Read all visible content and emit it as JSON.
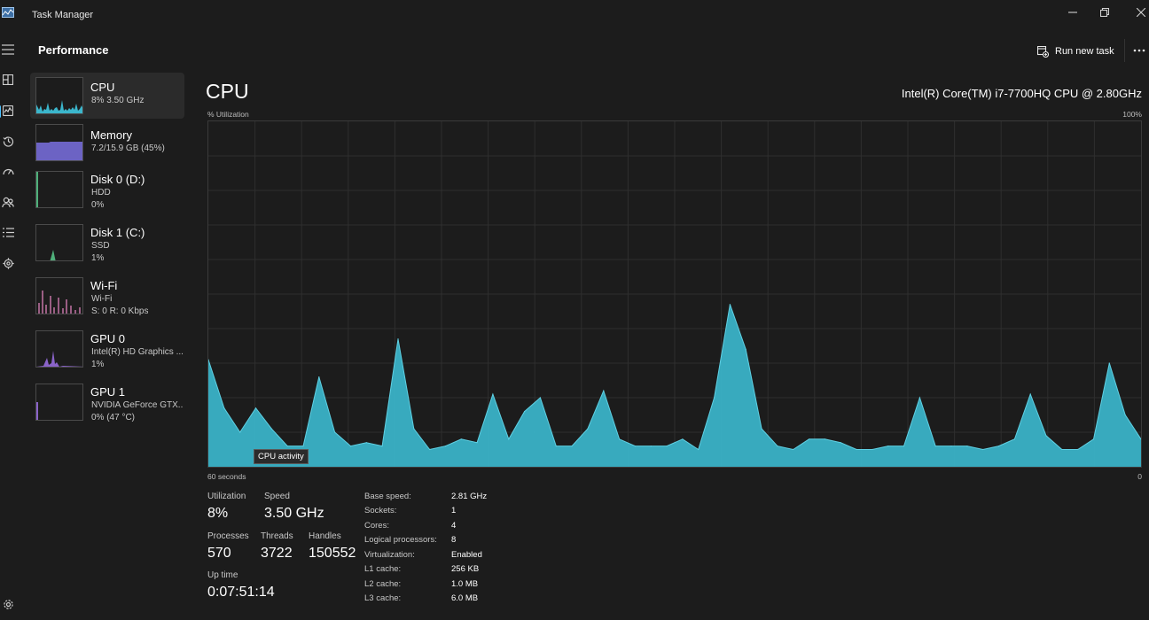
{
  "window": {
    "title": "Task Manager"
  },
  "navrail": {
    "items": [
      {
        "icon": "hamburger-icon"
      },
      {
        "icon": "processes-icon"
      },
      {
        "icon": "performance-icon",
        "active": true
      },
      {
        "icon": "app-history-icon"
      },
      {
        "icon": "startup-apps-icon"
      },
      {
        "icon": "users-icon"
      },
      {
        "icon": "details-icon"
      },
      {
        "icon": "services-icon"
      },
      {
        "icon": "settings-icon"
      }
    ]
  },
  "header": {
    "title": "Performance",
    "run_new_task": "Run new task",
    "more": "more-options-icon"
  },
  "sidebar": {
    "items": [
      {
        "name": "CPU",
        "line1": "8%  3.50 GHz",
        "line2": "",
        "color": "#3bb6cc"
      },
      {
        "name": "Memory",
        "line1": "7.2/15.9 GB (45%)",
        "line2": "",
        "color": "#7a6fd0"
      },
      {
        "name": "Disk 0 (D:)",
        "line1": "HDD",
        "line2": "0%",
        "color": "#4fb07a"
      },
      {
        "name": "Disk 1 (C:)",
        "line1": "SSD",
        "line2": "1%",
        "color": "#4fb07a"
      },
      {
        "name": "Wi-Fi",
        "line1": "Wi-Fi",
        "line2": "S: 0  R: 0 Kbps",
        "color": "#c85ea0"
      },
      {
        "name": "GPU 0",
        "line1": "Intel(R) HD Graphics ...",
        "line2": "1%",
        "color": "#8a63c9"
      },
      {
        "name": "GPU 1",
        "line1": "NVIDIA GeForce GTX...",
        "line2": "0%  (47 °C)",
        "color": "#8a63c9"
      }
    ]
  },
  "main": {
    "title": "CPU",
    "model": "Intel(R) Core(TM) i7-7700HQ CPU @ 2.80GHz",
    "y_label": "% Utilization",
    "y_max_label": "100%",
    "x_left_label": "60 seconds",
    "x_right_label": "0",
    "tooltip": "CPU activity",
    "graph_color": "#3bb6cc",
    "stats": {
      "utilization_label": "Utilization",
      "utilization_value": "8%",
      "speed_label": "Speed",
      "speed_value": "3.50 GHz",
      "processes_label": "Processes",
      "processes_value": "570",
      "threads_label": "Threads",
      "threads_value": "3722",
      "handles_label": "Handles",
      "handles_value": "150552",
      "uptime_label": "Up time",
      "uptime_value": "0:07:51:14"
    },
    "specs": [
      {
        "label": "Base speed:",
        "value": "2.81 GHz"
      },
      {
        "label": "Sockets:",
        "value": "1"
      },
      {
        "label": "Cores:",
        "value": "4"
      },
      {
        "label": "Logical processors:",
        "value": "8"
      },
      {
        "label": "Virtualization:",
        "value": "Enabled"
      },
      {
        "label": "L1 cache:",
        "value": "256 KB"
      },
      {
        "label": "L2 cache:",
        "value": "1.0 MB"
      },
      {
        "label": "L3 cache:",
        "value": "6.0 MB"
      }
    ]
  },
  "chart_data": {
    "type": "area",
    "xlabel": "60 seconds",
    "ylabel": "% Utilization",
    "xlim": [
      60,
      0
    ],
    "ylim": [
      0,
      100
    ],
    "grid": true,
    "series": [
      {
        "values": [
          31,
          17,
          10,
          17,
          11,
          6,
          6,
          26,
          10,
          6,
          7,
          6,
          37,
          11,
          5,
          6,
          8,
          7,
          21,
          8,
          16,
          20,
          6,
          6,
          11,
          22,
          8,
          6,
          6,
          6,
          8,
          5,
          20,
          47,
          34,
          11,
          6,
          5,
          8,
          8,
          7,
          5,
          5,
          6,
          6,
          20,
          6,
          6,
          6,
          5,
          6,
          8,
          21,
          9,
          5,
          5,
          8,
          30,
          15,
          8
        ]
      }
    ]
  }
}
